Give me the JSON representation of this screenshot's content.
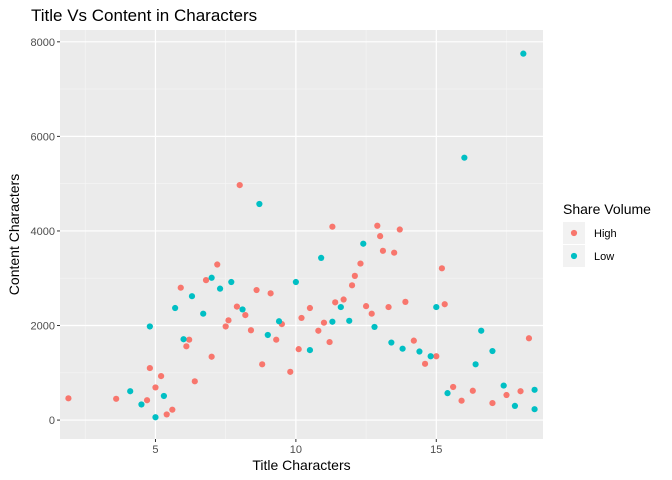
{
  "chart_data": {
    "type": "scatter",
    "title": "Title Vs Content in Characters",
    "xlabel": "Title Characters",
    "ylabel": "Content Characters",
    "xlim": [
      1.6,
      18.8
    ],
    "ylim": [
      -400,
      8250
    ],
    "x_ticks": [
      5,
      10,
      15
    ],
    "x_tick_labels": [
      "5",
      "10",
      "15"
    ],
    "x_minor_ticks": [
      2.5,
      7.5,
      12.5,
      17.5
    ],
    "y_ticks": [
      0,
      2000,
      4000,
      6000,
      8000
    ],
    "y_tick_labels": [
      "0",
      "2000",
      "4000",
      "6000",
      "8000"
    ],
    "y_minor_ticks": [
      1000,
      3000,
      5000,
      7000
    ],
    "grid": true,
    "legend": {
      "title": "Share Volume",
      "position": "right",
      "entries": [
        "High",
        "Low"
      ]
    },
    "series": [
      {
        "name": "High",
        "color": "#F8766D",
        "points": [
          [
            1.9,
            460
          ],
          [
            3.6,
            450
          ],
          [
            4.7,
            420
          ],
          [
            4.8,
            1100
          ],
          [
            5.0,
            690
          ],
          [
            5.2,
            930
          ],
          [
            5.4,
            120
          ],
          [
            5.6,
            220
          ],
          [
            5.9,
            2800
          ],
          [
            6.1,
            1560
          ],
          [
            6.2,
            1700
          ],
          [
            6.4,
            820
          ],
          [
            6.8,
            2960
          ],
          [
            7.0,
            1340
          ],
          [
            7.2,
            3290
          ],
          [
            7.5,
            1980
          ],
          [
            7.6,
            2110
          ],
          [
            7.9,
            2400
          ],
          [
            8.0,
            4970
          ],
          [
            8.2,
            2220
          ],
          [
            8.4,
            1900
          ],
          [
            8.6,
            2750
          ],
          [
            8.8,
            1180
          ],
          [
            9.1,
            2680
          ],
          [
            9.3,
            1700
          ],
          [
            9.5,
            2030
          ],
          [
            9.8,
            1020
          ],
          [
            10.1,
            1500
          ],
          [
            10.2,
            2160
          ],
          [
            10.5,
            2370
          ],
          [
            10.8,
            1890
          ],
          [
            11.0,
            2060
          ],
          [
            11.2,
            1650
          ],
          [
            11.3,
            4090
          ],
          [
            11.4,
            2490
          ],
          [
            11.7,
            2550
          ],
          [
            12.0,
            2850
          ],
          [
            12.1,
            3050
          ],
          [
            12.3,
            3310
          ],
          [
            12.5,
            2410
          ],
          [
            12.7,
            2250
          ],
          [
            12.9,
            4110
          ],
          [
            13.0,
            3890
          ],
          [
            13.1,
            3580
          ],
          [
            13.3,
            2390
          ],
          [
            13.5,
            3540
          ],
          [
            13.7,
            4030
          ],
          [
            13.9,
            2500
          ],
          [
            14.2,
            1680
          ],
          [
            14.6,
            1190
          ],
          [
            15.0,
            1350
          ],
          [
            15.2,
            3210
          ],
          [
            15.3,
            2450
          ],
          [
            15.6,
            700
          ],
          [
            15.9,
            410
          ],
          [
            16.3,
            620
          ],
          [
            17.0,
            360
          ],
          [
            17.5,
            530
          ],
          [
            18.0,
            610
          ],
          [
            18.3,
            1730
          ]
        ]
      },
      {
        "name": "Low",
        "color": "#00BFC4",
        "points": [
          [
            4.1,
            610
          ],
          [
            4.5,
            330
          ],
          [
            4.8,
            1980
          ],
          [
            5.0,
            60
          ],
          [
            5.3,
            510
          ],
          [
            5.7,
            2370
          ],
          [
            6.0,
            1710
          ],
          [
            6.3,
            2620
          ],
          [
            6.7,
            2250
          ],
          [
            7.0,
            3010
          ],
          [
            7.3,
            2780
          ],
          [
            7.7,
            2920
          ],
          [
            8.1,
            2340
          ],
          [
            8.7,
            4570
          ],
          [
            9.0,
            1800
          ],
          [
            9.4,
            2090
          ],
          [
            10.0,
            2920
          ],
          [
            10.5,
            1480
          ],
          [
            10.9,
            3430
          ],
          [
            11.3,
            2080
          ],
          [
            11.6,
            2390
          ],
          [
            11.9,
            2100
          ],
          [
            12.4,
            3730
          ],
          [
            12.8,
            1970
          ],
          [
            13.4,
            1640
          ],
          [
            13.8,
            1510
          ],
          [
            14.4,
            1450
          ],
          [
            14.8,
            1350
          ],
          [
            15.0,
            2390
          ],
          [
            15.4,
            570
          ],
          [
            16.0,
            5550
          ],
          [
            16.4,
            1180
          ],
          [
            16.6,
            1890
          ],
          [
            17.0,
            1460
          ],
          [
            17.4,
            730
          ],
          [
            17.8,
            300
          ],
          [
            18.1,
            7750
          ],
          [
            18.5,
            640
          ],
          [
            18.5,
            230
          ]
        ]
      }
    ]
  }
}
